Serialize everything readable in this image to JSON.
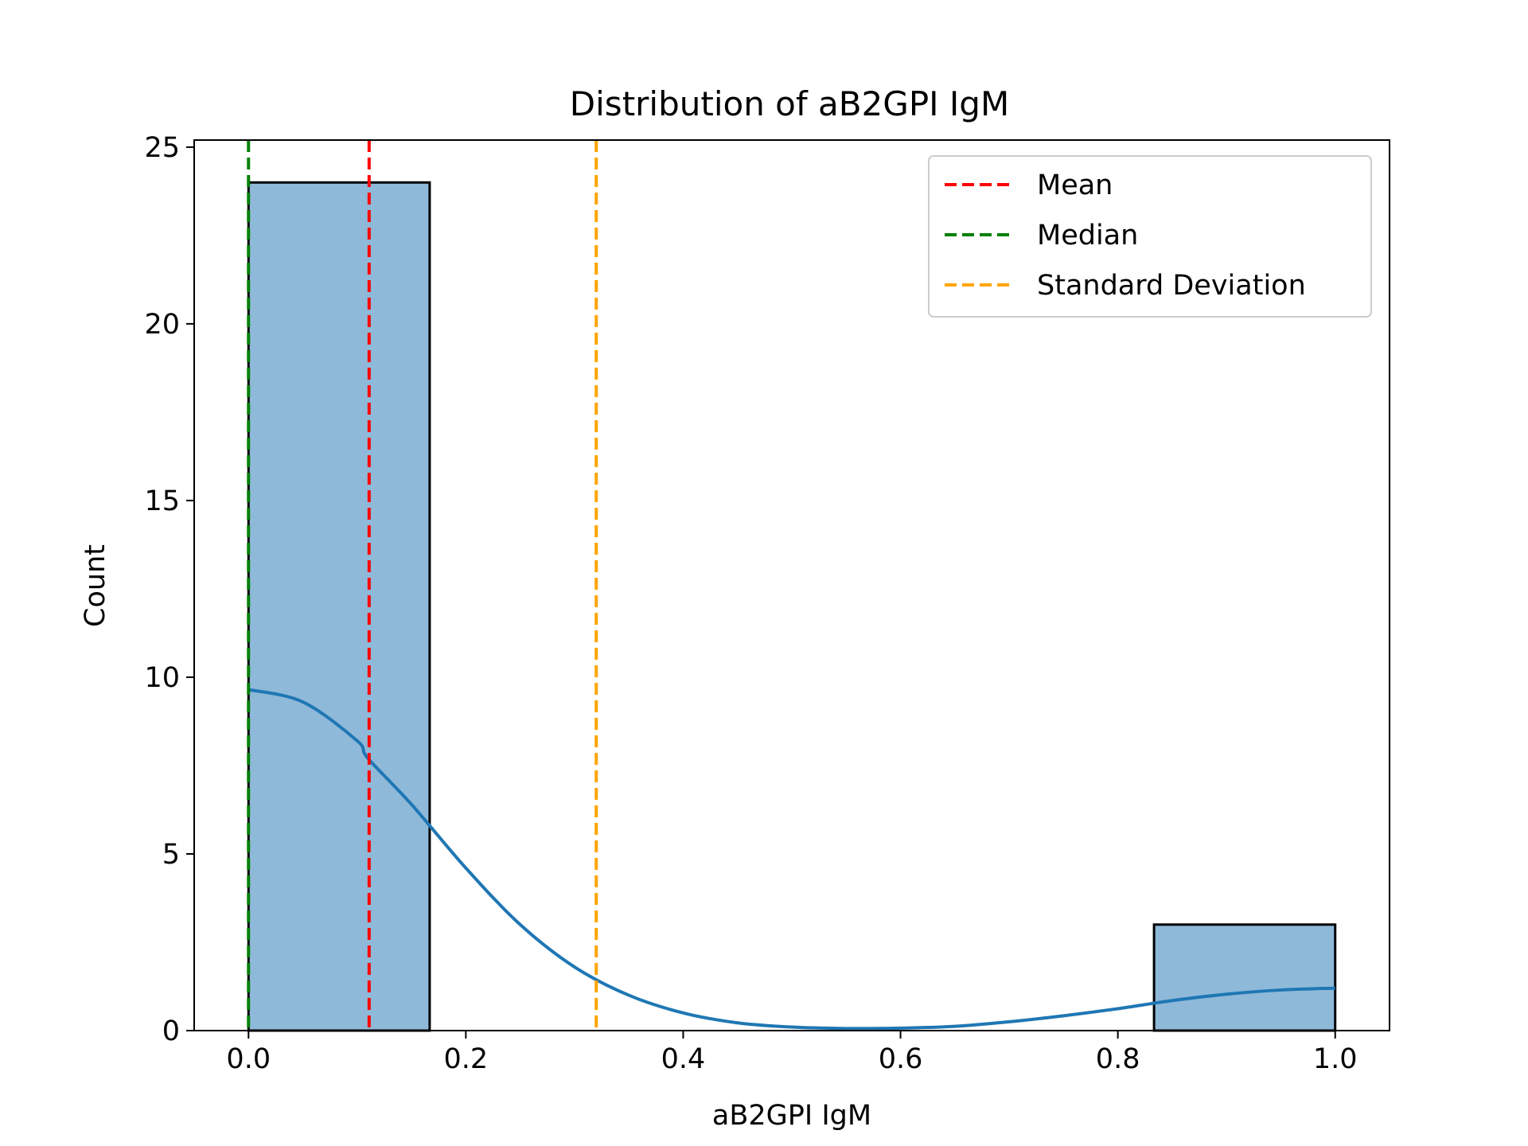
{
  "chart_data": {
    "type": "bar",
    "title": "Distribution of aB2GPI IgM",
    "xlabel": "aB2GPI IgM",
    "ylabel": "Count",
    "xlim": [
      -0.05,
      1.05
    ],
    "ylim": [
      0,
      25.2
    ],
    "xticks": [
      0.0,
      0.2,
      0.4,
      0.6,
      0.8,
      1.0
    ],
    "xtick_labels": [
      "0.0",
      "0.2",
      "0.4",
      "0.6",
      "0.8",
      "1.0"
    ],
    "yticks": [
      0,
      5,
      10,
      15,
      20,
      25
    ],
    "ytick_labels": [
      "0",
      "5",
      "10",
      "15",
      "20",
      "25"
    ],
    "grid": false,
    "legend_position": "top-right",
    "histogram": {
      "color": "#8fb9d9",
      "edge_color": "#000000",
      "bins": [
        {
          "x0": 0.0,
          "x1": 0.1667,
          "count": 24
        },
        {
          "x0": 0.1667,
          "x1": 0.3333,
          "count": 0
        },
        {
          "x0": 0.3333,
          "x1": 0.5,
          "count": 0
        },
        {
          "x0": 0.5,
          "x1": 0.6667,
          "count": 0
        },
        {
          "x0": 0.6667,
          "x1": 0.8333,
          "count": 0
        },
        {
          "x0": 0.8333,
          "x1": 1.0,
          "count": 3
        }
      ]
    },
    "kde": {
      "color": "#1f77b4",
      "x": [
        0.0,
        0.05,
        0.1,
        0.11,
        0.15,
        0.2,
        0.25,
        0.3,
        0.35,
        0.4,
        0.45,
        0.5,
        0.55,
        0.6,
        0.65,
        0.7,
        0.75,
        0.8,
        0.85,
        0.9,
        0.95,
        1.0
      ],
      "y": [
        9.65,
        9.3,
        8.2,
        7.7,
        6.4,
        4.6,
        3.0,
        1.8,
        1.0,
        0.5,
        0.22,
        0.1,
        0.06,
        0.07,
        0.12,
        0.25,
        0.42,
        0.62,
        0.85,
        1.03,
        1.15,
        1.2
      ]
    },
    "lines": [
      {
        "name": "Mean",
        "x": 0.111,
        "color": "#ff0000",
        "style": "dashed"
      },
      {
        "name": "Median",
        "x": 0.0,
        "color": "#008000",
        "style": "dashed"
      },
      {
        "name": "Standard Deviation",
        "x": 0.32,
        "color": "#ffa500",
        "style": "dashed"
      }
    ]
  }
}
